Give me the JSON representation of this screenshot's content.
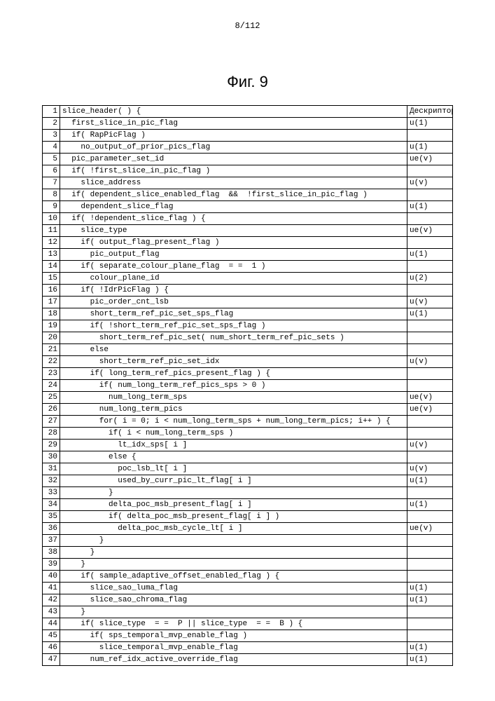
{
  "page_number": "8/112",
  "figure_title": "Фиг. 9",
  "header": [
    "",
    "",
    "Дескриптор"
  ],
  "rows": [
    {
      "n": "1",
      "code": "slice_header( ) {",
      "d": ""
    },
    {
      "n": "2",
      "code": "  first_slice_in_pic_flag",
      "d": "u(1)"
    },
    {
      "n": "3",
      "code": "  if( RapPicFlag )",
      "d": ""
    },
    {
      "n": "4",
      "code": "    no_output_of_prior_pics_flag",
      "d": "u(1)"
    },
    {
      "n": "5",
      "code": "  pic_parameter_set_id",
      "d": "ue(v)"
    },
    {
      "n": "6",
      "code": "  if( !first_slice_in_pic_flag )",
      "d": ""
    },
    {
      "n": "7",
      "code": "    slice_address",
      "d": "u(v)"
    },
    {
      "n": "8",
      "code": "  if( dependent_slice_enabled_flag  &&  !first_slice_in_pic_flag )",
      "d": ""
    },
    {
      "n": "9",
      "code": "    dependent_slice_flag",
      "d": "u(1)"
    },
    {
      "n": "10",
      "code": "  if( !dependent_slice_flag ) {",
      "d": ""
    },
    {
      "n": "11",
      "code": "    slice_type",
      "d": "ue(v)"
    },
    {
      "n": "12",
      "code": "    if( output_flag_present_flag )",
      "d": ""
    },
    {
      "n": "13",
      "code": "      pic_output_flag",
      "d": "u(1)"
    },
    {
      "n": "14",
      "code": "    if( separate_colour_plane_flag  = =  1 )",
      "d": ""
    },
    {
      "n": "15",
      "code": "      colour_plane_id",
      "d": "u(2)"
    },
    {
      "n": "16",
      "code": "    if( !IdrPicFlag ) {",
      "d": ""
    },
    {
      "n": "17",
      "code": "      pic_order_cnt_lsb",
      "d": "u(v)"
    },
    {
      "n": "18",
      "code": "      short_term_ref_pic_set_sps_flag",
      "d": "u(1)"
    },
    {
      "n": "19",
      "code": "      if( !short_term_ref_pic_set_sps_flag )",
      "d": ""
    },
    {
      "n": "20",
      "code": "        short_term_ref_pic_set( num_short_term_ref_pic_sets )",
      "d": ""
    },
    {
      "n": "21",
      "code": "      else",
      "d": ""
    },
    {
      "n": "22",
      "code": "        short_term_ref_pic_set_idx",
      "d": "u(v)"
    },
    {
      "n": "23",
      "code": "      if( long_term_ref_pics_present_flag ) {",
      "d": ""
    },
    {
      "n": "24",
      "code": "        if( num_long_term_ref_pics_sps > 0 )",
      "d": ""
    },
    {
      "n": "25",
      "code": "          num_long_term_sps",
      "d": "ue(v)"
    },
    {
      "n": "26",
      "code": "        num_long_term_pics",
      "d": "ue(v)"
    },
    {
      "n": "27",
      "code": "        for( i = 0; i < num_long_term_sps + num_long_term_pics; i++ ) {",
      "d": ""
    },
    {
      "n": "28",
      "code": "          if( i < num_long_term_sps )",
      "d": ""
    },
    {
      "n": "29",
      "code": "            lt_idx_sps[ i ]",
      "d": "u(v)"
    },
    {
      "n": "30",
      "code": "          else {",
      "d": ""
    },
    {
      "n": "31",
      "code": "            poc_lsb_lt[ i ]",
      "d": "u(v)"
    },
    {
      "n": "32",
      "code": "            used_by_curr_pic_lt_flag[ i ]",
      "d": "u(1)"
    },
    {
      "n": "33",
      "code": "          }",
      "d": ""
    },
    {
      "n": "34",
      "code": "          delta_poc_msb_present_flag[ i ]",
      "d": "u(1)"
    },
    {
      "n": "35",
      "code": "          if( delta_poc_msb_present_flag[ i ] )",
      "d": ""
    },
    {
      "n": "36",
      "code": "            delta_poc_msb_cycle_lt[ i ]",
      "d": "ue(v)"
    },
    {
      "n": "37",
      "code": "        }",
      "d": ""
    },
    {
      "n": "38",
      "code": "      }",
      "d": ""
    },
    {
      "n": "39",
      "code": "    }",
      "d": ""
    },
    {
      "n": "40",
      "code": "    if( sample_adaptive_offset_enabled_flag ) {",
      "d": ""
    },
    {
      "n": "41",
      "code": "      slice_sao_luma_flag",
      "d": "u(1)"
    },
    {
      "n": "42",
      "code": "      slice_sao_chroma_flag",
      "d": "u(1)"
    },
    {
      "n": "43",
      "code": "    }",
      "d": ""
    },
    {
      "n": "44",
      "code": "    if( slice_type  = =  P || slice_type  = =  B ) {",
      "d": ""
    },
    {
      "n": "45",
      "code": "      if( sps_temporal_mvp_enable_flag )",
      "d": ""
    },
    {
      "n": "46",
      "code": "        slice_temporal_mvp_enable_flag",
      "d": "u(1)"
    },
    {
      "n": "47",
      "code": "      num_ref_idx_active_override_flag",
      "d": "u(1)"
    }
  ]
}
